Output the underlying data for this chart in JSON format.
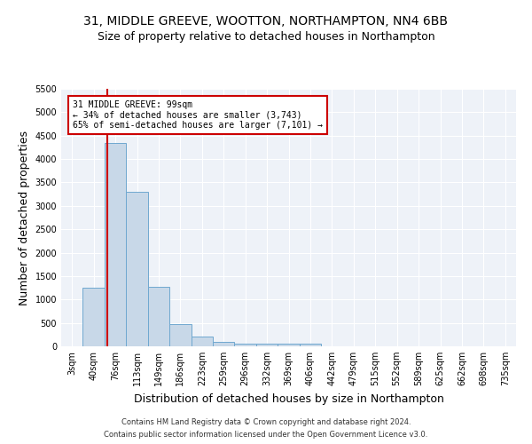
{
  "title": "31, MIDDLE GREEVE, WOOTTON, NORTHAMPTON, NN4 6BB",
  "subtitle": "Size of property relative to detached houses in Northampton",
  "xlabel": "Distribution of detached houses by size in Northampton",
  "ylabel": "Number of detached properties",
  "footer_line1": "Contains HM Land Registry data © Crown copyright and database right 2024.",
  "footer_line2": "Contains public sector information licensed under the Open Government Licence v3.0.",
  "bins": [
    "3sqm",
    "40sqm",
    "76sqm",
    "113sqm",
    "149sqm",
    "186sqm",
    "223sqm",
    "259sqm",
    "296sqm",
    "332sqm",
    "369sqm",
    "406sqm",
    "442sqm",
    "479sqm",
    "515sqm",
    "552sqm",
    "589sqm",
    "625sqm",
    "662sqm",
    "698sqm",
    "735sqm"
  ],
  "values": [
    0,
    1260,
    4340,
    3300,
    1280,
    480,
    215,
    90,
    65,
    55,
    55,
    55,
    0,
    0,
    0,
    0,
    0,
    0,
    0,
    0,
    0
  ],
  "bar_color": "#c8d8e8",
  "bar_edge_color": "#6fa8d0",
  "vline_color": "#cc0000",
  "annotation_text": "31 MIDDLE GREEVE: 99sqm\n← 34% of detached houses are smaller (3,743)\n65% of semi-detached houses are larger (7,101) →",
  "annotation_box_color": "#cc0000",
  "ylim": [
    0,
    5500
  ],
  "yticks": [
    0,
    500,
    1000,
    1500,
    2000,
    2500,
    3000,
    3500,
    4000,
    4500,
    5000,
    5500
  ],
  "bg_color": "#eef2f8",
  "grid_color": "#ffffff",
  "title_fontsize": 10,
  "subtitle_fontsize": 9,
  "axis_label_fontsize": 9,
  "tick_fontsize": 7,
  "footer_fontsize": 6
}
